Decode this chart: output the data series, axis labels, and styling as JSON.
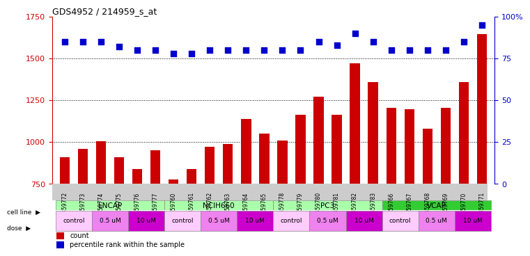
{
  "title": "GDS4952 / 214959_s_at",
  "samples": [
    "GSM1359772",
    "GSM1359773",
    "GSM1359774",
    "GSM1359775",
    "GSM1359776",
    "GSM1359777",
    "GSM1359760",
    "GSM1359761",
    "GSM1359762",
    "GSM1359763",
    "GSM1359764",
    "GSM1359765",
    "GSM1359778",
    "GSM1359779",
    "GSM1359780",
    "GSM1359781",
    "GSM1359782",
    "GSM1359783",
    "GSM1359766",
    "GSM1359767",
    "GSM1359768",
    "GSM1359769",
    "GSM1359770",
    "GSM1359771"
  ],
  "counts": [
    910,
    960,
    1005,
    910,
    840,
    950,
    775,
    840,
    970,
    990,
    1140,
    1050,
    1010,
    1165,
    1270,
    1165,
    1470,
    1360,
    1205,
    1195,
    1080,
    1205,
    1360,
    1645
  ],
  "percentile_ranks": [
    85,
    85,
    85,
    82,
    80,
    80,
    78,
    78,
    80,
    80,
    80,
    80,
    80,
    80,
    85,
    83,
    90,
    85,
    80,
    80,
    80,
    80,
    85,
    95
  ],
  "bar_color": "#CC0000",
  "dot_color": "#0000CC",
  "ylim_left": [
    750,
    1750
  ],
  "ylim_right": [
    0,
    100
  ],
  "yticks_left": [
    750,
    1000,
    1250,
    1500,
    1750
  ],
  "yticks_right": [
    0,
    25,
    50,
    75,
    100
  ],
  "ytick_right_labels": [
    "0",
    "25",
    "50",
    "75",
    "100%"
  ],
  "grid_values": [
    1000,
    1250,
    1500
  ],
  "cell_lines": [
    {
      "name": "LNCAP",
      "start": 0,
      "end": 6,
      "color": "#AAFFAA"
    },
    {
      "name": "NCIH660",
      "start": 6,
      "end": 12,
      "color": "#AAFFAA"
    },
    {
      "name": "PC3",
      "start": 12,
      "end": 18,
      "color": "#AAFFAA"
    },
    {
      "name": "VCAP",
      "start": 18,
      "end": 24,
      "color": "#33CC33"
    }
  ],
  "dose_groups": [
    {
      "label": "control",
      "start": 0,
      "end": 2,
      "color": "#FFCCFF"
    },
    {
      "label": "0.5 uM",
      "start": 2,
      "end": 4,
      "color": "#EE82EE"
    },
    {
      "label": "10 uM",
      "start": 4,
      "end": 6,
      "color": "#CC00CC"
    },
    {
      "label": "control",
      "start": 6,
      "end": 8,
      "color": "#FFCCFF"
    },
    {
      "label": "0.5 uM",
      "start": 8,
      "end": 10,
      "color": "#EE82EE"
    },
    {
      "label": "10 uM",
      "start": 10,
      "end": 12,
      "color": "#CC00CC"
    },
    {
      "label": "control",
      "start": 12,
      "end": 14,
      "color": "#FFCCFF"
    },
    {
      "label": "0.5 uM",
      "start": 14,
      "end": 16,
      "color": "#EE82EE"
    },
    {
      "label": "10 uM",
      "start": 16,
      "end": 18,
      "color": "#CC00CC"
    },
    {
      "label": "control",
      "start": 18,
      "end": 20,
      "color": "#FFCCFF"
    },
    {
      "label": "0.5 uM",
      "start": 20,
      "end": 22,
      "color": "#EE82EE"
    },
    {
      "label": "10 uM",
      "start": 22,
      "end": 24,
      "color": "#CC00CC"
    }
  ],
  "xticklabel_bg": "#CCCCCC",
  "plot_bg": "#FFFFFF"
}
